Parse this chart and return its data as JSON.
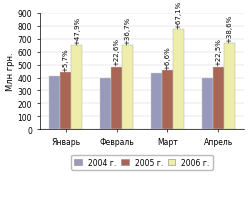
{
  "months": [
    "Январь",
    "Февраль",
    "Март",
    "Апрель"
  ],
  "values_2004": [
    415,
    400,
    432,
    400
  ],
  "values_2005": [
    440,
    485,
    460,
    485
  ],
  "values_2006": [
    650,
    650,
    775,
    665
  ],
  "labels_2005": [
    "+5,7%",
    "+22,6%",
    "+6,6%",
    "+22,5%"
  ],
  "labels_2006": [
    "+47,9%",
    "+36,7%",
    "+67,1%",
    "+38,6%"
  ],
  "color_2004": "#9999bb",
  "color_2005": "#aa6655",
  "color_2006": "#eeeeaa",
  "bg_color": "#ffffff",
  "ylabel": "Млн грн.",
  "ylim": [
    0,
    900
  ],
  "yticks": [
    0,
    100,
    200,
    300,
    400,
    500,
    600,
    700,
    800,
    900
  ],
  "legend_labels": [
    "2004 г.",
    "2005 г.",
    "2006 г."
  ],
  "bar_width": 0.22,
  "label_fontsize": 5.0,
  "tick_fontsize": 5.5,
  "legend_fontsize": 5.5,
  "ylabel_fontsize": 6.0
}
